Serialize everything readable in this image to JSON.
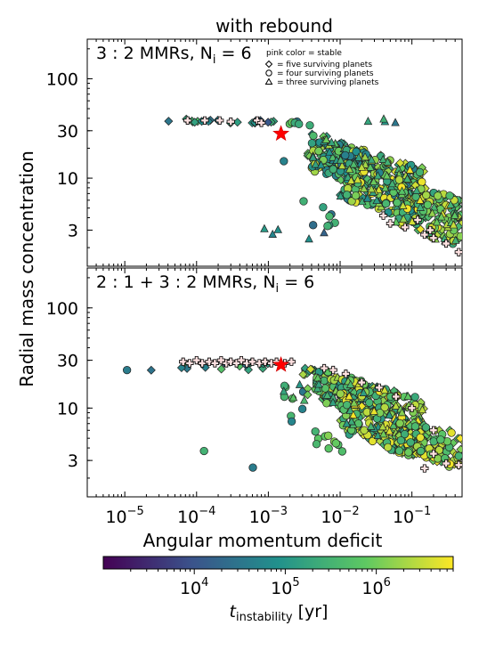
{
  "figure": {
    "title": "with rebound",
    "ylabel": "Radial mass concentration",
    "xlabel": "Angular momentum deficit"
  },
  "colorbar": {
    "label_main": "t",
    "label_sub": "instability",
    "label_unit": " [yr]",
    "range_years": [
      1000,
      7000000
    ],
    "ticks": [
      {
        "value": 10000,
        "mant": "10",
        "exp": "4"
      },
      {
        "value": 100000,
        "mant": "10",
        "exp": "5"
      },
      {
        "value": 1000000,
        "mant": "10",
        "exp": "6"
      }
    ],
    "colormap": [
      "#440154",
      "#3b528b",
      "#21918c",
      "#5ec962",
      "#fde725"
    ]
  },
  "legend": {
    "title": "pink color = stable",
    "items": [
      {
        "marker": "diamond",
        "label": "= five surviving planets"
      },
      {
        "marker": "circle",
        "label": "= four surviving planets"
      },
      {
        "marker": "triangle",
        "label": "= three surviving planets"
      }
    ]
  },
  "chart_data": [
    {
      "type": "scatter",
      "panel_label": "3 : 2 MMRs,  N",
      "panel_label_sub": "i",
      "panel_label_tail": " = 6",
      "xscale": "log",
      "yscale": "log",
      "xlim": [
        3e-06,
        0.5
      ],
      "ylim": [
        1.3,
        250
      ],
      "x_ticks": [
        {
          "value": 1e-05,
          "mant": "10",
          "exp": "−5"
        },
        {
          "value": 0.0001,
          "mant": "10",
          "exp": "−4"
        },
        {
          "value": 0.001,
          "mant": "10",
          "exp": "−3"
        },
        {
          "value": 0.01,
          "mant": "10",
          "exp": "−2"
        },
        {
          "value": 0.1,
          "mant": "10",
          "exp": "−1"
        }
      ],
      "y_ticks": [
        {
          "value": 3,
          "label": "3"
        },
        {
          "value": 10,
          "label": "10"
        },
        {
          "value": 30,
          "label": "30"
        },
        {
          "value": 100,
          "label": "100"
        }
      ],
      "star": {
        "x": 0.0015,
        "y": 28
      },
      "stable_points": [
        [
          7.5e-05,
          38
        ],
        [
          0.00013,
          38
        ],
        [
          0.00021,
          38
        ],
        [
          0.0003,
          37
        ],
        [
          0.0007,
          38
        ],
        [
          0.0008,
          36
        ],
        [
          0.15,
          2.7
        ],
        [
          0.2,
          2.5
        ],
        [
          0.45,
          1.8
        ],
        [
          0.3,
          2.2
        ],
        [
          0.08,
          3.2
        ],
        [
          0.05,
          3.5
        ],
        [
          0.12,
          3.8
        ],
        [
          0.04,
          4.2
        ],
        [
          0.18,
          3.0
        ]
      ],
      "clusters": [
        {
          "marker": "diamond",
          "x": [
            4e-05,
            0.0012
          ],
          "y": [
            35,
            40
          ],
          "t": [
            4.0,
            5.8
          ],
          "n": 22
        },
        {
          "marker": "circle",
          "x": [
            0.0012,
            0.004
          ],
          "y": [
            33,
            40
          ],
          "t": [
            4.5,
            6.2
          ],
          "n": 6
        },
        {
          "marker": "triangle",
          "x": [
            0.003,
            0.08
          ],
          "y": [
            32,
            42
          ],
          "t": [
            4.5,
            6.4
          ],
          "n": 4
        },
        {
          "marker": "diamond",
          "x": [
            0.0035,
            0.02
          ],
          "y": [
            10,
            30
          ],
          "t": [
            4.8,
            6.4
          ],
          "n": 60
        },
        {
          "marker": "circle",
          "x": [
            0.004,
            0.025
          ],
          "y": [
            8,
            28
          ],
          "t": [
            4.6,
            6.6
          ],
          "n": 70
        },
        {
          "marker": "triangle",
          "x": [
            0.004,
            0.025
          ],
          "y": [
            9,
            28
          ],
          "t": [
            4.6,
            6.5
          ],
          "n": 30
        },
        {
          "marker": "diamond",
          "x": [
            0.01,
            0.15
          ],
          "y": [
            4,
            22
          ],
          "t": [
            5.0,
            6.8
          ],
          "n": 120
        },
        {
          "marker": "circle",
          "x": [
            0.01,
            0.15
          ],
          "y": [
            3.5,
            22
          ],
          "t": [
            4.5,
            6.8
          ],
          "n": 140
        },
        {
          "marker": "triangle",
          "x": [
            0.01,
            0.15
          ],
          "y": [
            4,
            20
          ],
          "t": [
            4.8,
            6.8
          ],
          "n": 60
        },
        {
          "marker": "diamond",
          "x": [
            0.06,
            0.5
          ],
          "y": [
            2.2,
            10
          ],
          "t": [
            5.5,
            6.8
          ],
          "n": 70
        },
        {
          "marker": "circle",
          "x": [
            0.06,
            0.5
          ],
          "y": [
            2.0,
            10
          ],
          "t": [
            5.2,
            6.8
          ],
          "n": 70
        },
        {
          "marker": "triangle",
          "x": [
            0.06,
            0.5
          ],
          "y": [
            2.0,
            9
          ],
          "t": [
            5.2,
            6.8
          ],
          "n": 30
        },
        {
          "marker": "circle",
          "x": [
            0.003,
            0.01
          ],
          "y": [
            2.3,
            6
          ],
          "t": [
            4.2,
            5.8
          ],
          "n": 8
        },
        {
          "marker": "triangle",
          "x": [
            0.0008,
            0.006
          ],
          "y": [
            2.3,
            4
          ],
          "t": [
            4.2,
            5.6
          ],
          "n": 5
        },
        {
          "marker": "circle",
          "x": [
            0.0015,
            0.0025
          ],
          "y": [
            14,
            16
          ],
          "t": [
            4.5,
            4.7
          ],
          "n": 1
        }
      ]
    },
    {
      "type": "scatter",
      "panel_label": "2 : 1 + 3 : 2 MMRs,  N",
      "panel_label_sub": "i",
      "panel_label_tail": " = 6",
      "xscale": "log",
      "yscale": "log",
      "xlim": [
        3e-06,
        0.5
      ],
      "ylim": [
        1.3,
        250
      ],
      "x_ticks": [
        {
          "value": 1e-05,
          "mant": "10",
          "exp": "−5"
        },
        {
          "value": 0.0001,
          "mant": "10",
          "exp": "−4"
        },
        {
          "value": 0.001,
          "mant": "10",
          "exp": "−3"
        },
        {
          "value": 0.01,
          "mant": "10",
          "exp": "−2"
        },
        {
          "value": 0.1,
          "mant": "10",
          "exp": "−1"
        }
      ],
      "y_ticks": [
        {
          "value": 3,
          "label": "3"
        },
        {
          "value": 10,
          "label": "10"
        },
        {
          "value": 30,
          "label": "30"
        },
        {
          "value": 100,
          "label": "100"
        }
      ],
      "star": {
        "x": 0.0015,
        "y": 27
      },
      "stable_points": [
        [
          6.5e-05,
          29
        ],
        [
          8e-05,
          28
        ],
        [
          0.0001,
          30
        ],
        [
          0.00012,
          28
        ],
        [
          0.00015,
          29
        ],
        [
          0.00018,
          28
        ],
        [
          0.00022,
          30
        ],
        [
          0.00026,
          28
        ],
        [
          0.0003,
          29
        ],
        [
          0.00036,
          28
        ],
        [
          0.00042,
          30
        ],
        [
          0.0005,
          28
        ],
        [
          0.0006,
          29
        ],
        [
          0.00075,
          28
        ],
        [
          0.0009,
          29
        ],
        [
          0.0011,
          28
        ],
        [
          0.0013,
          29
        ],
        [
          0.0017,
          28
        ],
        [
          0.0021,
          29
        ],
        [
          0.006,
          25
        ],
        [
          0.008,
          24
        ],
        [
          0.012,
          22
        ],
        [
          0.02,
          18
        ],
        [
          0.035,
          16
        ],
        [
          0.06,
          13
        ],
        [
          0.1,
          10
        ],
        [
          0.2,
          6
        ],
        [
          0.3,
          2.8
        ],
        [
          0.45,
          2.7
        ],
        [
          0.15,
          2.5
        ],
        [
          0.2,
          3.5
        ]
      ],
      "clusters": [
        {
          "marker": "circle",
          "x": [
            1e-05,
            1.2e-05
          ],
          "y": [
            22,
            25
          ],
          "t": [
            4.6,
            4.8
          ],
          "n": 1
        },
        {
          "marker": "diamond",
          "x": [
            2.2e-05,
            2.5e-05
          ],
          "y": [
            23,
            25
          ],
          "t": [
            4.4,
            4.5
          ],
          "n": 1
        },
        {
          "marker": "diamond",
          "x": [
            6e-05,
            0.002
          ],
          "y": [
            23,
            30
          ],
          "t": [
            4.2,
            5.8
          ],
          "n": 18
        },
        {
          "marker": "circle",
          "x": [
            0.00011,
            0.00013
          ],
          "y": [
            3.6,
            4.0
          ],
          "t": [
            5.4,
            5.5
          ],
          "n": 1
        },
        {
          "marker": "circle",
          "x": [
            0.0006,
            0.00065
          ],
          "y": [
            2.5,
            2.7
          ],
          "t": [
            4.6,
            4.7
          ],
          "n": 1
        },
        {
          "marker": "circle",
          "x": [
            0.0015,
            0.004
          ],
          "y": [
            5,
            20
          ],
          "t": [
            4.4,
            5.8
          ],
          "n": 8
        },
        {
          "marker": "triangle",
          "x": [
            0.0015,
            0.005
          ],
          "y": [
            10,
            25
          ],
          "t": [
            4.6,
            6.0
          ],
          "n": 6
        },
        {
          "marker": "diamond",
          "x": [
            0.003,
            0.02
          ],
          "y": [
            10,
            26
          ],
          "t": [
            5.0,
            6.6
          ],
          "n": 50
        },
        {
          "marker": "circle",
          "x": [
            0.004,
            0.025
          ],
          "y": [
            8,
            26
          ],
          "t": [
            4.8,
            6.7
          ],
          "n": 60
        },
        {
          "marker": "triangle",
          "x": [
            0.004,
            0.025
          ],
          "y": [
            8,
            24
          ],
          "t": [
            4.8,
            6.5
          ],
          "n": 25
        },
        {
          "marker": "diamond",
          "x": [
            0.01,
            0.15
          ],
          "y": [
            3,
            22
          ],
          "t": [
            5.2,
            6.8
          ],
          "n": 120
        },
        {
          "marker": "circle",
          "x": [
            0.01,
            0.15
          ],
          "y": [
            3,
            22
          ],
          "t": [
            5.0,
            6.8
          ],
          "n": 140
        },
        {
          "marker": "triangle",
          "x": [
            0.01,
            0.15
          ],
          "y": [
            3.5,
            20
          ],
          "t": [
            5.0,
            6.8
          ],
          "n": 50
        },
        {
          "marker": "diamond",
          "x": [
            0.06,
            0.5
          ],
          "y": [
            2.5,
            8
          ],
          "t": [
            5.6,
            6.8
          ],
          "n": 50
        },
        {
          "marker": "circle",
          "x": [
            0.06,
            0.5
          ],
          "y": [
            2.4,
            8
          ],
          "t": [
            5.4,
            6.8
          ],
          "n": 50
        },
        {
          "marker": "circle",
          "x": [
            0.004,
            0.012
          ],
          "y": [
            3.5,
            6
          ],
          "t": [
            5.4,
            6.2
          ],
          "n": 10
        }
      ]
    }
  ]
}
